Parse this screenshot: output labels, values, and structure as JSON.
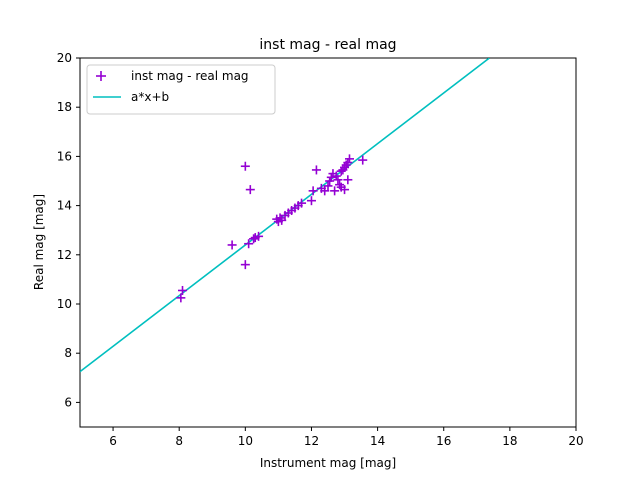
{
  "chart_data": {
    "type": "scatter",
    "title": "inst mag - real mag",
    "xlabel": "Instrument mag [mag]",
    "ylabel": "Real mag [mag]",
    "xlim": [
      5,
      20
    ],
    "ylim": [
      5,
      20
    ],
    "xticks": [
      6,
      8,
      10,
      12,
      14,
      16,
      18,
      20
    ],
    "yticks": [
      6,
      8,
      10,
      12,
      14,
      16,
      18,
      20
    ],
    "grid": false,
    "legend_position": "upper-left",
    "series": [
      {
        "name": "inst mag - real mag",
        "kind": "scatter",
        "marker": "plus",
        "color": "#9400d3",
        "points": [
          [
            8.1,
            10.55
          ],
          [
            8.05,
            10.25
          ],
          [
            9.6,
            12.4
          ],
          [
            10.0,
            15.6
          ],
          [
            10.15,
            14.65
          ],
          [
            10.0,
            11.6
          ],
          [
            10.1,
            12.45
          ],
          [
            10.25,
            12.65
          ],
          [
            10.3,
            12.7
          ],
          [
            10.4,
            12.75
          ],
          [
            10.95,
            13.45
          ],
          [
            11.0,
            13.35
          ],
          [
            11.05,
            13.5
          ],
          [
            11.1,
            13.4
          ],
          [
            11.2,
            13.6
          ],
          [
            11.3,
            13.7
          ],
          [
            11.4,
            13.8
          ],
          [
            11.5,
            13.9
          ],
          [
            11.6,
            14.0
          ],
          [
            11.7,
            14.1
          ],
          [
            12.0,
            14.2
          ],
          [
            12.05,
            14.6
          ],
          [
            12.15,
            15.45
          ],
          [
            12.3,
            14.7
          ],
          [
            12.4,
            14.6
          ],
          [
            12.5,
            14.8
          ],
          [
            12.55,
            15.0
          ],
          [
            12.6,
            15.15
          ],
          [
            12.65,
            15.3
          ],
          [
            12.7,
            14.6
          ],
          [
            12.75,
            15.2
          ],
          [
            12.8,
            15.05
          ],
          [
            12.85,
            14.85
          ],
          [
            12.9,
            14.75
          ],
          [
            12.9,
            15.4
          ],
          [
            12.95,
            15.45
          ],
          [
            13.0,
            15.55
          ],
          [
            13.0,
            14.65
          ],
          [
            13.05,
            15.65
          ],
          [
            13.1,
            15.75
          ],
          [
            13.1,
            15.05
          ],
          [
            13.15,
            15.9
          ],
          [
            13.55,
            15.85
          ]
        ]
      },
      {
        "name": "a*x+b",
        "kind": "line",
        "color": "#00bfbf",
        "x": [
          5,
          17.38
        ],
        "y": [
          7.25,
          20
        ]
      }
    ]
  }
}
